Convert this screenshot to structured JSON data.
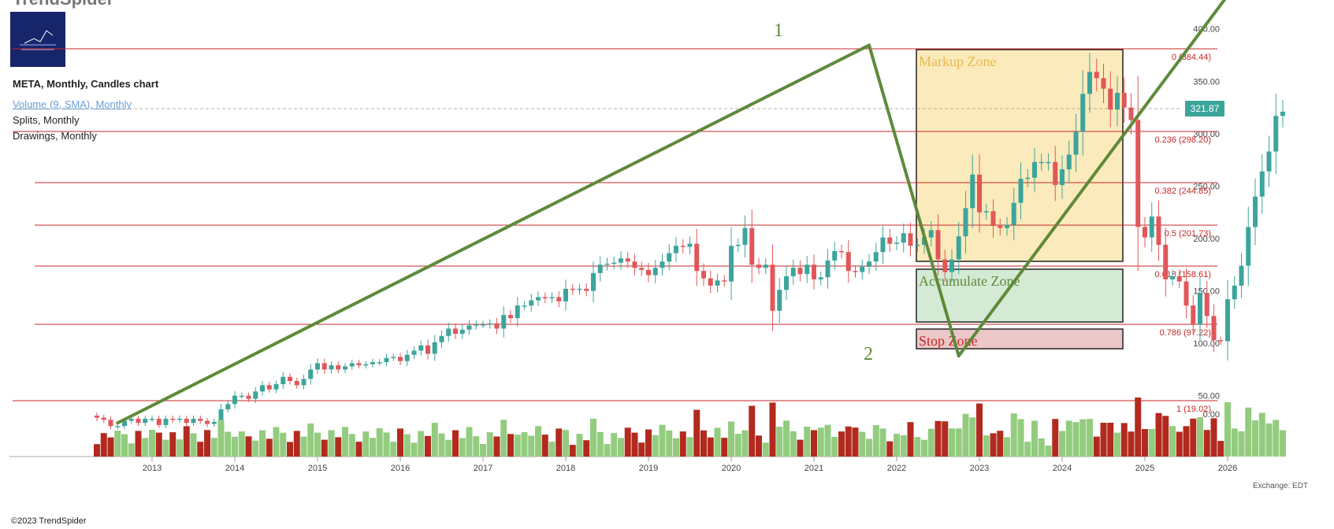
{
  "app": {
    "brand": "TrendSpider",
    "copyright": "©2023 TrendSpider",
    "exchange_label": "Exchange: EDT"
  },
  "legend": {
    "title": "META, Monthly, Candles chart",
    "volume": "Volume (9, SMA), Monthly",
    "splits": "Splits, Monthly",
    "drawings": "Drawings, Monthly"
  },
  "last_price": "321.87",
  "colors": {
    "up": "#3ca59b",
    "down": "#e0575a",
    "vol_up": "#93cc7f",
    "vol_down": "#b22a1e",
    "fib": "#c62828",
    "trend": "#5e8a3a"
  },
  "chart_data": {
    "type": "candlestick",
    "symbol": "META",
    "timeframe": "Monthly",
    "y_axis": {
      "ticks": [
        "400.00",
        "350.00",
        "300.00",
        "250.00",
        "200.00",
        "150.00",
        "100.00",
        "50.00",
        "0.00"
      ],
      "ylim": [
        0,
        420
      ]
    },
    "x_axis": {
      "ticks": [
        "2013",
        "2014",
        "2015",
        "2016",
        "2017",
        "2018",
        "2019",
        "2020",
        "2021",
        "2022",
        "2023",
        "2024",
        "2025",
        "2026"
      ]
    },
    "monthly_closes": [
      29,
      27,
      21,
      21,
      26,
      28,
      24,
      28,
      28,
      22,
      28,
      27,
      28,
      24,
      28,
      26,
      23,
      25,
      37,
      42,
      50,
      50,
      47,
      54,
      60,
      56,
      61,
      68,
      64,
      60,
      66,
      75,
      81,
      75,
      79,
      75,
      78,
      81,
      79,
      80,
      82,
      82,
      86,
      87,
      83,
      89,
      93,
      98,
      90,
      101,
      107,
      114,
      109,
      113,
      117,
      118,
      118,
      119,
      114,
      127,
      124,
      136,
      136,
      141,
      144,
      143,
      144,
      140,
      152,
      151,
      152,
      150,
      167,
      175,
      176,
      177,
      181,
      178,
      172,
      170,
      165,
      172,
      178,
      186,
      193,
      192,
      195,
      169,
      162,
      155,
      160,
      159,
      193,
      194,
      210,
      175,
      172,
      175,
      131,
      151,
      164,
      172,
      166,
      175,
      161,
      163,
      179,
      188,
      187,
      169,
      168,
      173,
      178,
      187,
      201,
      195,
      196,
      205,
      193,
      194,
      201,
      208,
      180,
      168,
      180,
      202,
      229,
      261,
      225,
      226,
      212,
      210,
      213,
      234,
      257,
      258,
      273,
      273,
      273,
      251,
      266,
      280,
      302,
      338,
      359,
      353,
      343,
      323,
      339,
      325,
      313,
      211,
      201,
      221,
      194,
      161,
      164,
      159,
      136,
      118,
      148,
      126,
      103,
      102,
      142,
      155,
      174,
      211,
      240,
      264,
      283,
      317,
      321
    ],
    "fibonacci": [
      {
        "ratio": "0",
        "price": "384.44",
        "label": "0 (384.44)"
      },
      {
        "ratio": "0.236",
        "price": "298.20",
        "label": "0.236 (298.20)"
      },
      {
        "ratio": "0.382",
        "price": "244.85",
        "label": "0.382 (244.85)"
      },
      {
        "ratio": "0.5",
        "price": "201.73",
        "label": "0.5 (201.73)"
      },
      {
        "ratio": "0.618",
        "price": "158.61",
        "label": "0.618 (158.61)"
      },
      {
        "ratio": "0.786",
        "price": "97.22",
        "label": "0.786 (97.22)"
      },
      {
        "ratio": "1",
        "price": "19.02",
        "label": "1 (19.02)"
      }
    ],
    "zones": [
      {
        "label": "Markup Zone",
        "top": 384.44,
        "bottom": 158.61,
        "fill": "#fbeabb",
        "text_color": "#e8b94e"
      },
      {
        "label": "Accumulate Zone",
        "top": 150,
        "bottom": 92,
        "fill": "#d5ead4",
        "text_color": "#5e8a3a"
      },
      {
        "label": "Stop Zone",
        "top": 88,
        "bottom": 68,
        "fill": "#ecc7c7",
        "text_color": "#c62828"
      }
    ],
    "wave_labels": [
      "1",
      "2"
    ],
    "trendlines": [
      {
        "from": {
          "date": "2012-08",
          "price": 24
        },
        "to": {
          "date": "2021-09",
          "price": 384.44
        }
      },
      {
        "from": {
          "date": "2021-09",
          "price": 384.44
        },
        "to": {
          "date": "2022-10",
          "price": 88
        }
      },
      {
        "from": {
          "date": "2022-10",
          "price": 88
        },
        "to": {
          "date": "2026-11",
          "price": 520
        }
      }
    ]
  }
}
